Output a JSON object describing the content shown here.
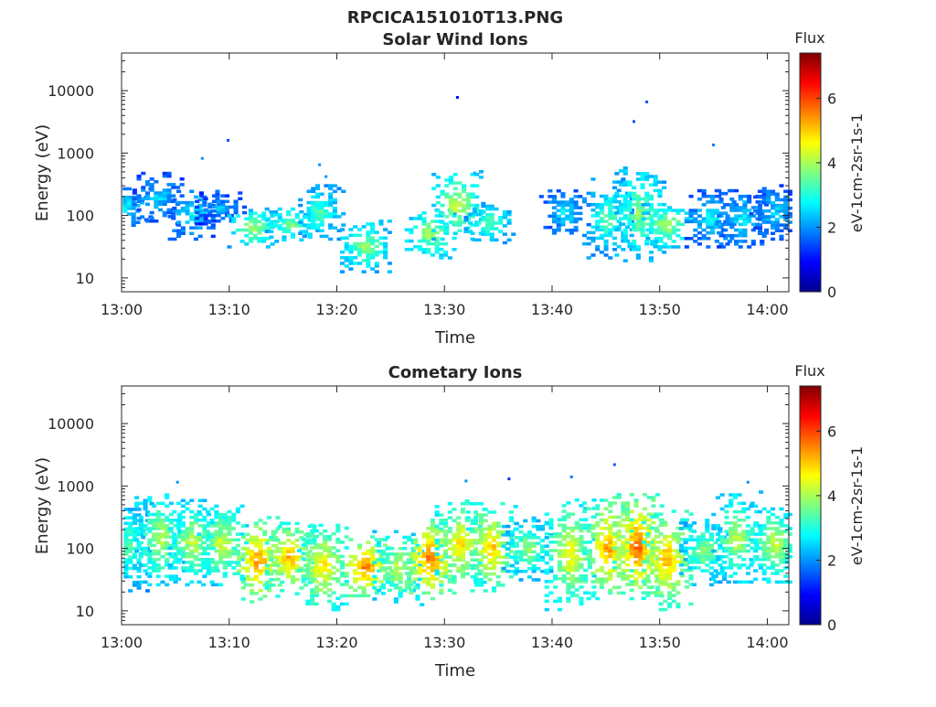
{
  "figure": {
    "title": "RPCICA151010T13.PNG"
  },
  "chart_data": [
    {
      "type": "heatmap",
      "title": "Solar Wind Ions",
      "xlabel": "Time",
      "ylabel": "Energy (eV)",
      "x_ticks": [
        "13:00",
        "13:10",
        "13:20",
        "13:30",
        "13:40",
        "13:50",
        "14:00"
      ],
      "x_range_minutes": [
        0,
        62
      ],
      "y_scale": "log",
      "y_ticks": [
        "10",
        "100",
        "1000",
        "10000"
      ],
      "y_range": [
        6,
        40000
      ],
      "colorbar": {
        "label_top": "Flux",
        "label_side": "eV-1cm-2sr-1s-1",
        "ticks": [
          "0",
          "2",
          "4",
          "6"
        ],
        "range": [
          0,
          7.4
        ],
        "colormap": "jet"
      },
      "bursts": [
        {
          "t": 0.3,
          "e_lo": 60,
          "e_hi": 300,
          "level": 2.8
        },
        {
          "t": 3.2,
          "e_lo": 70,
          "e_hi": 500,
          "level": 2.6
        },
        {
          "t": 6.5,
          "e_lo": 40,
          "e_hi": 250,
          "level": 2.8
        },
        {
          "t": 9.0,
          "e_lo": 70,
          "e_hi": 220,
          "level": 2.4
        },
        {
          "t": 12.0,
          "e_lo": 30,
          "e_hi": 120,
          "level": 4.2
        },
        {
          "t": 15.5,
          "e_lo": 35,
          "e_hi": 130,
          "level": 3.9
        },
        {
          "t": 18.2,
          "e_lo": 40,
          "e_hi": 300,
          "level": 3.5
        },
        {
          "t": 22.5,
          "e_lo": 12,
          "e_hi": 80,
          "level": 4.0
        },
        {
          "t": 28.5,
          "e_lo": 20,
          "e_hi": 120,
          "level": 4.2
        },
        {
          "t": 31.0,
          "e_lo": 40,
          "e_hi": 500,
          "level": 4.4
        },
        {
          "t": 34.0,
          "e_lo": 35,
          "e_hi": 160,
          "level": 3.6
        },
        {
          "t": 41.0,
          "e_lo": 50,
          "e_hi": 250,
          "level": 2.8
        },
        {
          "t": 45.0,
          "e_lo": 20,
          "e_hi": 400,
          "level": 3.5
        },
        {
          "t": 48.0,
          "e_lo": 18,
          "e_hi": 600,
          "level": 4.0
        },
        {
          "t": 50.5,
          "e_lo": 30,
          "e_hi": 150,
          "level": 4.2
        },
        {
          "t": 54.5,
          "e_lo": 30,
          "e_hi": 250,
          "level": 2.8
        },
        {
          "t": 57.5,
          "e_lo": 30,
          "e_hi": 250,
          "level": 2.8
        },
        {
          "t": 60.5,
          "e_lo": 40,
          "e_hi": 300,
          "level": 2.6
        }
      ],
      "points": [
        {
          "t": 31.2,
          "e": 7800,
          "level": 1.0
        },
        {
          "t": 48.8,
          "e": 6600,
          "level": 1.5
        },
        {
          "t": 47.6,
          "e": 3200,
          "level": 1.5
        },
        {
          "t": 9.9,
          "e": 1600,
          "level": 1.5
        },
        {
          "t": 55.0,
          "e": 1350,
          "level": 1.8
        },
        {
          "t": 7.5,
          "e": 820,
          "level": 2.0
        },
        {
          "t": 18.4,
          "e": 650,
          "level": 2.0
        },
        {
          "t": 19.0,
          "e": 420,
          "level": 2.0
        },
        {
          "t": 32.8,
          "e": 480,
          "level": 2.2
        }
      ]
    },
    {
      "type": "heatmap",
      "title": "Cometary Ions",
      "xlabel": "Time",
      "ylabel": "Energy (eV)",
      "x_ticks": [
        "13:00",
        "13:10",
        "13:20",
        "13:30",
        "13:40",
        "13:50",
        "14:00"
      ],
      "x_range_minutes": [
        0,
        62
      ],
      "y_scale": "log",
      "y_ticks": [
        "10",
        "100",
        "1000",
        "10000"
      ],
      "y_range": [
        6,
        40000
      ],
      "colorbar": {
        "label_top": "Flux",
        "label_side": "eV-1cm-2sr-1s-1",
        "ticks": [
          "0",
          "2",
          "4",
          "6"
        ],
        "range": [
          0,
          7.4
        ],
        "colormap": "jet"
      },
      "bursts": [
        {
          "t": 0.4,
          "e_lo": 20,
          "e_hi": 600,
          "level": 3.6
        },
        {
          "t": 3.4,
          "e_lo": 25,
          "e_hi": 700,
          "level": 4.3
        },
        {
          "t": 6.5,
          "e_lo": 25,
          "e_hi": 600,
          "level": 4.4
        },
        {
          "t": 9.2,
          "e_lo": 25,
          "e_hi": 500,
          "level": 4.5
        },
        {
          "t": 12.5,
          "e_lo": 12,
          "e_hi": 300,
          "level": 5.6
        },
        {
          "t": 15.5,
          "e_lo": 18,
          "e_hi": 250,
          "level": 5.4
        },
        {
          "t": 18.5,
          "e_lo": 10,
          "e_hi": 250,
          "level": 5.0
        },
        {
          "t": 22.5,
          "e_lo": 15,
          "e_hi": 150,
          "level": 5.8
        },
        {
          "t": 25.5,
          "e_lo": 12,
          "e_hi": 200,
          "level": 4.4
        },
        {
          "t": 28.5,
          "e_lo": 15,
          "e_hi": 300,
          "level": 5.9
        },
        {
          "t": 31.3,
          "e_lo": 20,
          "e_hi": 600,
          "level": 5.0
        },
        {
          "t": 34.2,
          "e_lo": 20,
          "e_hi": 500,
          "level": 5.2
        },
        {
          "t": 37.5,
          "e_lo": 30,
          "e_hi": 300,
          "level": 4.0
        },
        {
          "t": 41.5,
          "e_lo": 10,
          "e_hi": 600,
          "level": 4.8
        },
        {
          "t": 45.0,
          "e_lo": 15,
          "e_hi": 600,
          "level": 5.5
        },
        {
          "t": 47.8,
          "e_lo": 15,
          "e_hi": 700,
          "level": 5.9
        },
        {
          "t": 50.5,
          "e_lo": 10,
          "e_hi": 400,
          "level": 5.4
        },
        {
          "t": 54.0,
          "e_lo": 25,
          "e_hi": 300,
          "level": 4.0
        },
        {
          "t": 57.0,
          "e_lo": 25,
          "e_hi": 800,
          "level": 4.3
        },
        {
          "t": 60.5,
          "e_lo": 25,
          "e_hi": 500,
          "level": 4.4
        }
      ],
      "points": [
        {
          "t": 45.8,
          "e": 2200,
          "level": 1.6
        },
        {
          "t": 41.8,
          "e": 1400,
          "level": 1.8
        },
        {
          "t": 36.0,
          "e": 1300,
          "level": 1.2
        },
        {
          "t": 5.2,
          "e": 1150,
          "level": 2.0
        },
        {
          "t": 32.0,
          "e": 1200,
          "level": 2.0
        },
        {
          "t": 58.2,
          "e": 1150,
          "level": 2.0
        }
      ]
    }
  ]
}
